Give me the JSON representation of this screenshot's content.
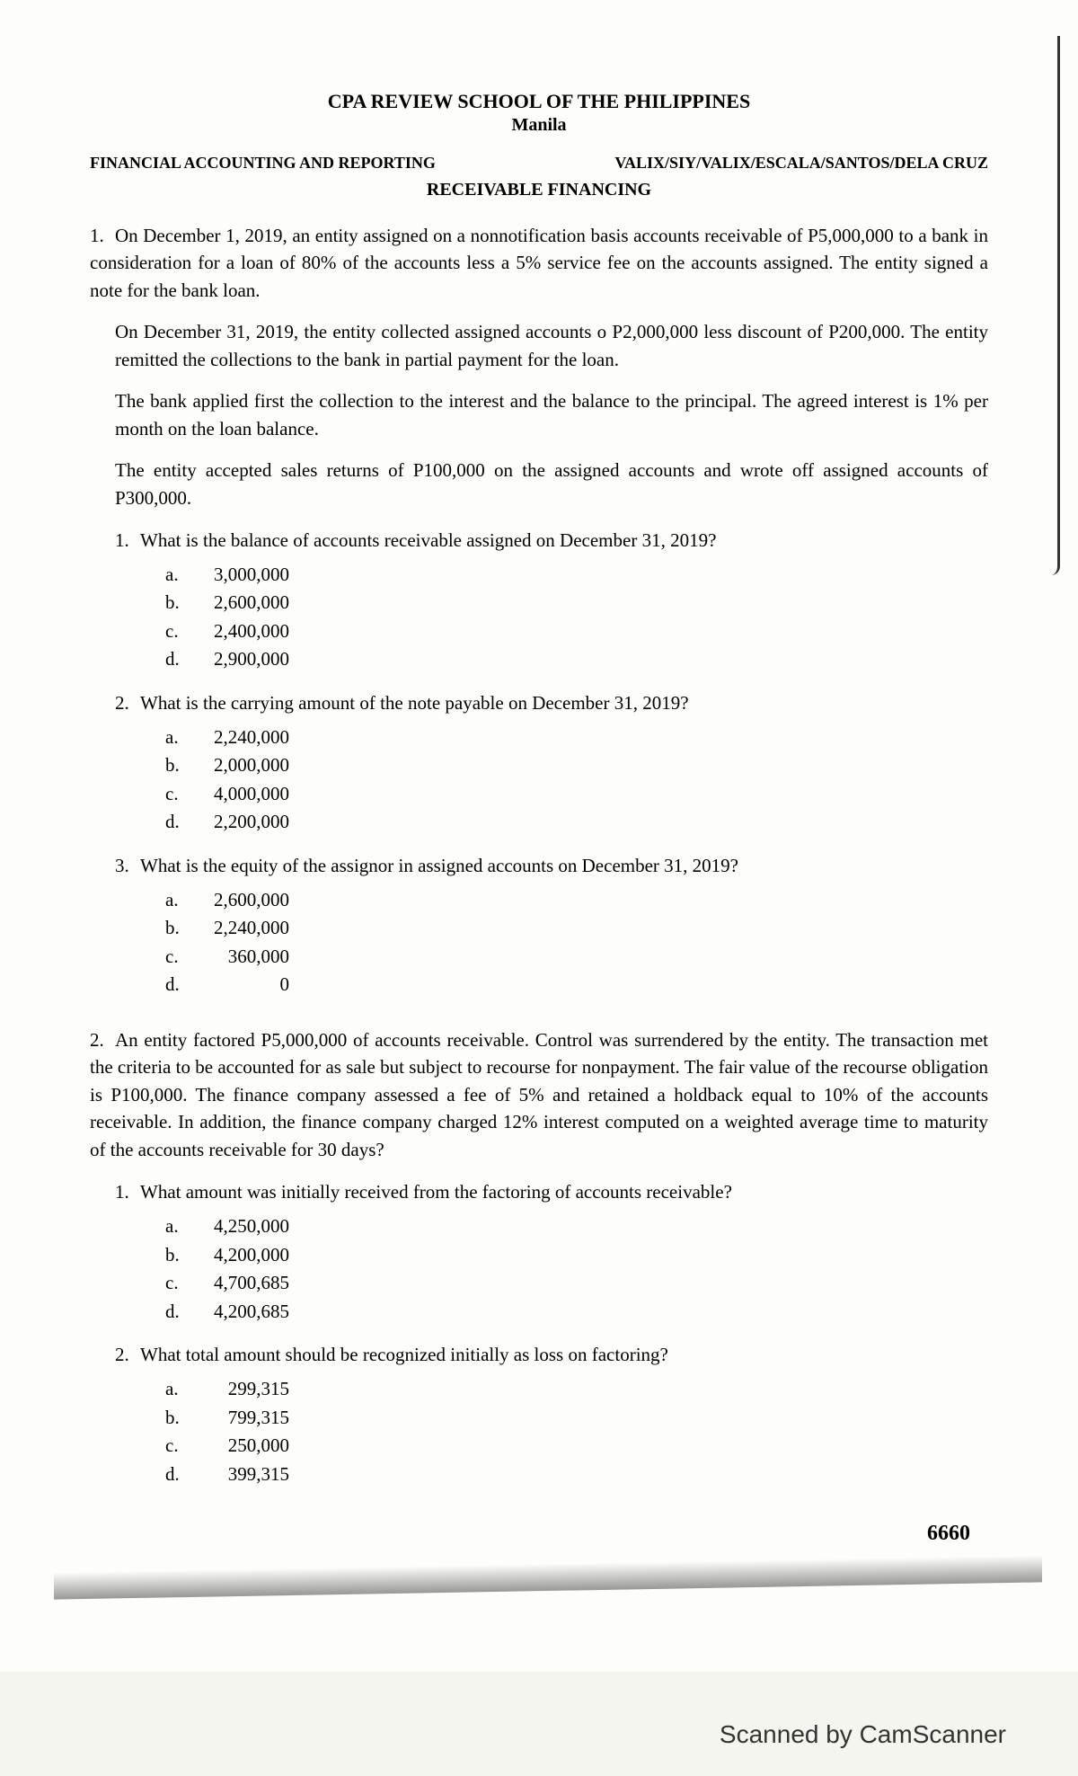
{
  "header": {
    "title": "CPA REVIEW SCHOOL OF THE PHILIPPINES",
    "subtitle": "Manila",
    "course": "FINANCIAL ACCOUNTING AND REPORTING",
    "authors": "VALIX/SIY/VALIX/ESCALA/SANTOS/DELA CRUZ",
    "topic": "RECEIVABLE FINANCING"
  },
  "problems": [
    {
      "number": "1.",
      "intro": "On December 1, 2019, an entity assigned on a nonnotification basis accounts receivable of P5,000,000 to a bank in consideration for a loan of 80% of the accounts less a 5% service fee on the accounts assigned. The entity signed a note for the bank loan.",
      "paragraphs": [
        "On December 31, 2019, the entity collected assigned accounts o P2,000,000 less discount of P200,000. The entity remitted the collections to the bank in partial payment for the loan.",
        "The bank applied first the collection to the interest and the balance to the principal. The agreed interest is 1% per month on the loan balance.",
        "The entity accepted sales returns of P100,000 on the assigned accounts and wrote off assigned accounts of P300,000."
      ],
      "subquestions": [
        {
          "num": "1.",
          "text": "What is the balance of accounts receivable assigned on December 31, 2019?",
          "options": [
            {
              "letter": "a.",
              "value": "3,000,000"
            },
            {
              "letter": "b.",
              "value": "2,600,000"
            },
            {
              "letter": "c.",
              "value": "2,400,000"
            },
            {
              "letter": "d.",
              "value": "2,900,000"
            }
          ]
        },
        {
          "num": "2.",
          "text": "What is the carrying amount of the note payable on December 31, 2019?",
          "options": [
            {
              "letter": "a.",
              "value": "2,240,000"
            },
            {
              "letter": "b.",
              "value": "2,000,000"
            },
            {
              "letter": "c.",
              "value": "4,000,000"
            },
            {
              "letter": "d.",
              "value": "2,200,000"
            }
          ]
        },
        {
          "num": "3.",
          "text": "What is the equity of the assignor in assigned accounts on December 31, 2019?",
          "options": [
            {
              "letter": "a.",
              "value": "2,600,000"
            },
            {
              "letter": "b.",
              "value": "2,240,000"
            },
            {
              "letter": "c.",
              "value": "360,000"
            },
            {
              "letter": "d.",
              "value": "0"
            }
          ]
        }
      ]
    },
    {
      "number": "2.",
      "intro": "An entity factored P5,000,000 of accounts receivable. Control was surrendered by the entity. The transaction met the criteria to be accounted for as sale but subject to recourse for nonpayment. The fair value of the recourse obligation is P100,000. The finance company assessed a fee of 5% and retained a holdback equal to 10% of the accounts receivable. In addition, the finance company charged 12% interest computed on a weighted average time to maturity of the accounts receivable for 30 days?",
      "paragraphs": [],
      "subquestions": [
        {
          "num": "1.",
          "text": "What amount was initially received from the factoring of accounts receivable?",
          "options": [
            {
              "letter": "a.",
              "value": "4,250,000"
            },
            {
              "letter": "b.",
              "value": "4,200,000"
            },
            {
              "letter": "c.",
              "value": "4,700,685"
            },
            {
              "letter": "d.",
              "value": "4,200,685"
            }
          ]
        },
        {
          "num": "2.",
          "text": "What total amount should be recognized initially as loss on factoring?",
          "options": [
            {
              "letter": "a.",
              "value": "299,315"
            },
            {
              "letter": "b.",
              "value": "799,315"
            },
            {
              "letter": "c.",
              "value": "250,000"
            },
            {
              "letter": "d.",
              "value": "399,315"
            }
          ]
        }
      ]
    }
  ],
  "page_number": "6660",
  "scanner_footer": "Scanned by CamScanner"
}
